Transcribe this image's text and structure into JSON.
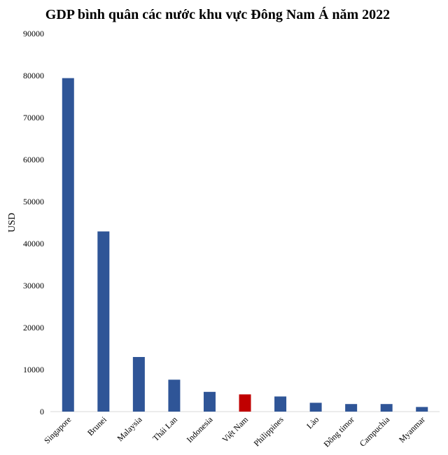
{
  "chart_data": {
    "type": "bar",
    "title": "GDP bình quân các nước khu vực Đông Nam Á năm 2022",
    "ylabel": "USD",
    "xlabel": "",
    "ylim": [
      0,
      90000
    ],
    "yticks": [
      "0",
      "10000",
      "20000",
      "30000",
      "40000",
      "50000",
      "60000",
      "70000",
      "80000",
      "90000"
    ],
    "grid": false,
    "categories": [
      "Singapore",
      "Brunei",
      "Malaysia",
      "Thái Lan",
      "Indonesia",
      "Việt Nam",
      "Philippines",
      "Lào",
      "Đông timor",
      "Campuchia",
      "Myanmar"
    ],
    "values": [
      79400,
      42900,
      13000,
      7600,
      4700,
      4100,
      3600,
      2100,
      1800,
      1800,
      1100
    ],
    "colors": {
      "default": "#2f5597",
      "highlight": "#c00000",
      "highlight_category": "Việt Nam"
    }
  }
}
